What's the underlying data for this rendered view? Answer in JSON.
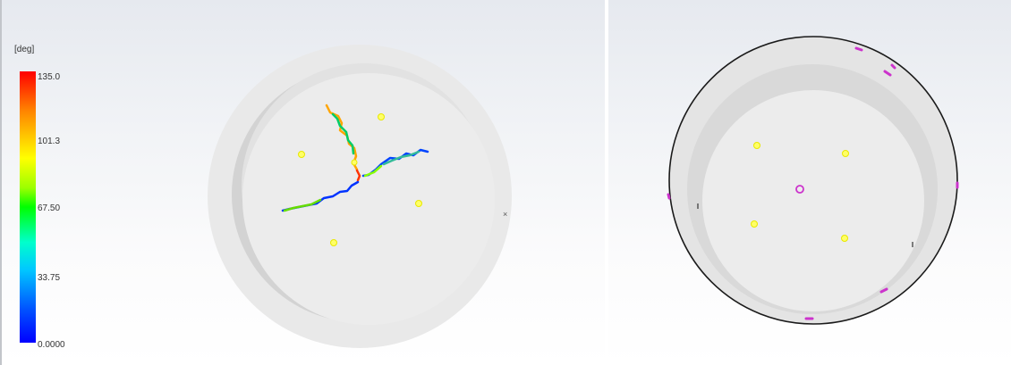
{
  "legend": {
    "unit": "[deg]",
    "ticks": [
      "135.0",
      "101.3",
      "67.50",
      "33.75",
      "0.0000"
    ],
    "colors": [
      "#ff0000",
      "#ffff00",
      "#00ff00",
      "#00ffff",
      "#0000ff"
    ]
  },
  "colors": {
    "background_top": "#e6e9ef",
    "vessel_outer": "#e9e9e9",
    "vessel_ring": "#d3d3d3",
    "vessel_floor": "#ececec",
    "rim_outline": "#1a1a1a",
    "particle_marker": "#ffff66",
    "highlight_marker": "#cc33cc"
  },
  "left_view": {
    "description_icon": "pathline-icon",
    "marker_count": 5
  },
  "right_view": {
    "marker_count": 4,
    "center_marker_count": 1
  }
}
